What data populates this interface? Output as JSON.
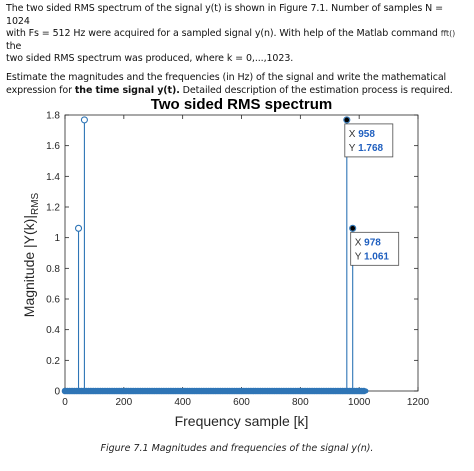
{
  "problem": {
    "p1_a": "The two sided RMS spectrum of the signal y(t) is shown in Figure 7.1. Number of samples N = 1024",
    "p1_b": "with Fs = 512 Hz were acquired for a sampled signal y(n). With help of the Matlab command",
    "p1_cmd": "fft()",
    "p1_c": "the",
    "p1_d": "two sided RMS spectrum was produced, where k = 0,...,1023.",
    "p2_a": "Estimate the magnitudes and the frequencies (in Hz) of the signal and write the mathematical",
    "p2_b": "expression for",
    "p2_bold": "the time signal y(t).",
    "p2_c": "Detailed description of the estimation process is required."
  },
  "chart_data": {
    "type": "stem",
    "title": "Two sided RMS spectrum",
    "xlabel": "Frequency sample [k]",
    "ylabel_main": "Magnitude |Y(k)|",
    "ylabel_sub": "RMS",
    "xlim": [
      0,
      1200
    ],
    "ylim": [
      0,
      1.8
    ],
    "xticks": [
      0,
      200,
      400,
      600,
      800,
      1000,
      1200
    ],
    "yticks": [
      0,
      0.2,
      0.4,
      0.6,
      0.8,
      1,
      1.2,
      1.4,
      1.6,
      1.8
    ],
    "nonzero_stems": [
      {
        "k": 46,
        "value": 1.061
      },
      {
        "k": 66,
        "value": 1.768
      },
      {
        "k": 958,
        "value": 1.768
      },
      {
        "k": 978,
        "value": 1.061
      }
    ],
    "baseline_stems": {
      "from": 0,
      "to": 1023,
      "value": 0
    },
    "series_color": "#2e75b6",
    "datatips": [
      {
        "x_label": "X",
        "x": 958,
        "y_label": "Y",
        "y": 1.768
      },
      {
        "x_label": "X",
        "x": 978,
        "y_label": "Y",
        "y": 1.061
      }
    ]
  },
  "caption": "Figure 7.1 Magnitudes and frequencies of the signal y(n)."
}
